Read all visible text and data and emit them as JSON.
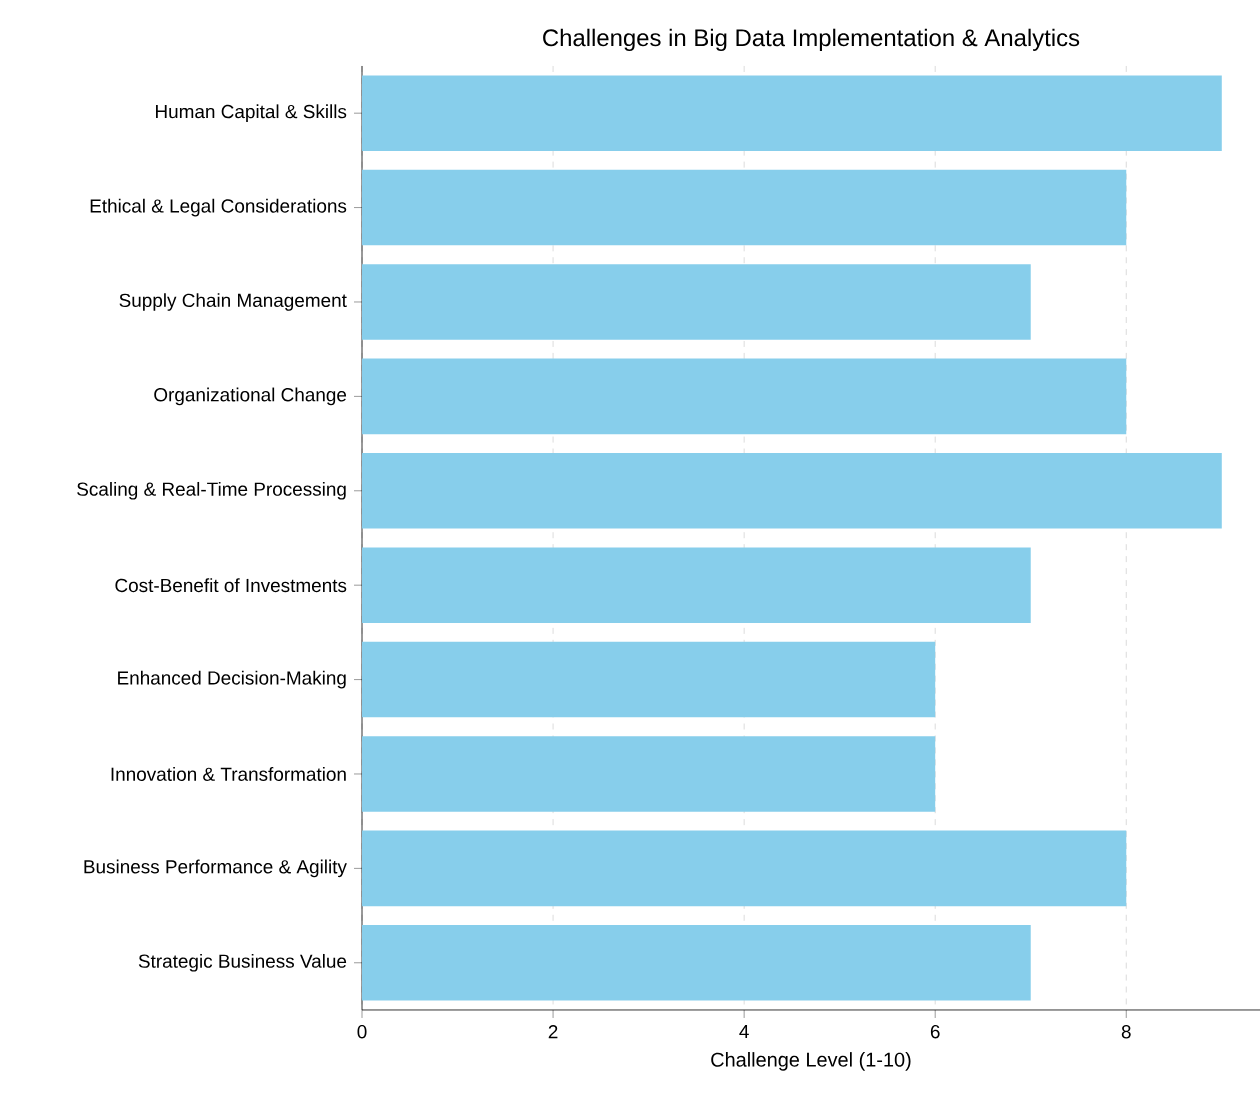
{
  "chart_data": {
    "type": "bar",
    "orientation": "horizontal",
    "title": "Challenges in Big Data Implementation & Analytics",
    "xlabel": "Challenge Level (1-10)",
    "categories": [
      "Human Capital & Skills",
      "Ethical & Legal Considerations",
      "Supply Chain Management",
      "Organizational Change",
      "Scaling & Real-Time Processing",
      "Cost-Benefit of Investments",
      "Enhanced Decision-Making",
      "Innovation & Transformation",
      "Business Performance & Agility",
      "Strategic Business Value"
    ],
    "values": [
      9,
      8,
      7,
      8,
      9,
      7,
      6,
      6,
      8,
      7
    ],
    "color": "#87ceeb",
    "xlim": [
      0,
      9.4
    ],
    "xticks": [
      0,
      2,
      4,
      6,
      8
    ],
    "grid": "x"
  }
}
